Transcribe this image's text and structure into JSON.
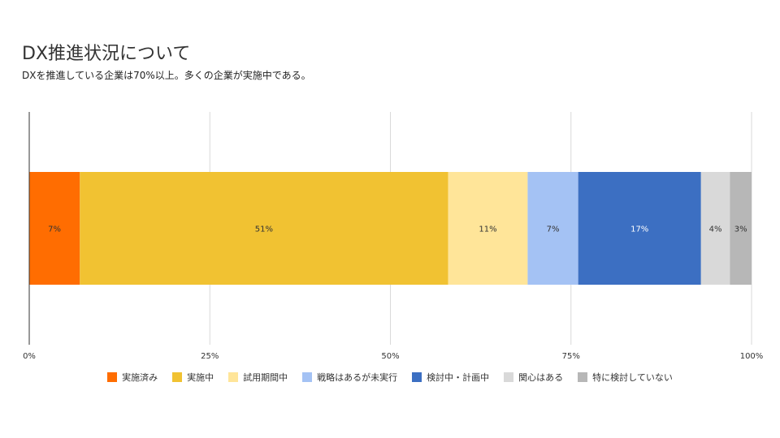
{
  "title": "DX推進状況について",
  "subtitle": "DXを推進している企業は70%以上。多くの企業が実施中である。",
  "chart_data": {
    "type": "bar",
    "orientation": "horizontal",
    "stacked": true,
    "normalized": true,
    "xlim": [
      0,
      100
    ],
    "ticks": [
      "0%",
      "25%",
      "50%",
      "75%",
      "100%"
    ],
    "tick_values": [
      0,
      25,
      50,
      75,
      100
    ],
    "grid": true,
    "legend_position": "bottom",
    "series": [
      {
        "name": "実施済み",
        "value": 7,
        "label": "7%",
        "color": "#ff6d01",
        "label_color": "#333333"
      },
      {
        "name": "実施中",
        "value": 51,
        "label": "51%",
        "color": "#f1c232",
        "label_color": "#333333"
      },
      {
        "name": "試用期間中",
        "value": 11,
        "label": "11%",
        "color": "#ffe599",
        "label_color": "#333333"
      },
      {
        "name": "戦略はあるが未実行",
        "value": 7,
        "label": "7%",
        "color": "#a4c2f4",
        "label_color": "#333333"
      },
      {
        "name": "検討中・計画中",
        "value": 17,
        "label": "17%",
        "color": "#3c6fc2",
        "label_color": "#ffffff"
      },
      {
        "name": "関心はある",
        "value": 4,
        "label": "4%",
        "color": "#d9d9d9",
        "label_color": "#333333"
      },
      {
        "name": "特に検討していない",
        "value": 3,
        "label": "3%",
        "color": "#b7b7b7",
        "label_color": "#333333"
      }
    ]
  }
}
